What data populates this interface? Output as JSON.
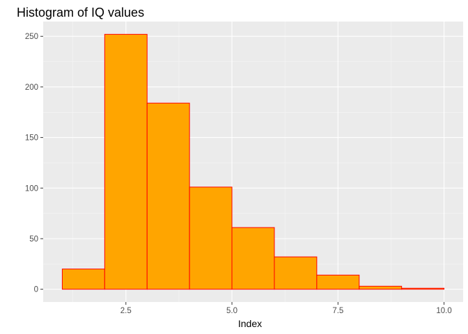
{
  "chart_data": {
    "type": "bar",
    "title": "Histogram of IQ values",
    "xlabel": "Index",
    "ylabel": "",
    "bins": [
      {
        "x0": 1,
        "x1": 2,
        "count": 20
      },
      {
        "x0": 2,
        "x1": 3,
        "count": 252
      },
      {
        "x0": 3,
        "x1": 4,
        "count": 184
      },
      {
        "x0": 4,
        "x1": 5,
        "count": 101
      },
      {
        "x0": 5,
        "x1": 6,
        "count": 61
      },
      {
        "x0": 6,
        "x1": 7,
        "count": 32
      },
      {
        "x0": 7,
        "x1": 8,
        "count": 14
      },
      {
        "x0": 8,
        "x1": 9,
        "count": 3
      },
      {
        "x0": 9,
        "x1": 10,
        "count": 1
      }
    ],
    "xlim": [
      0.55,
      10.45
    ],
    "ylim": [
      -12.6,
      264.6
    ],
    "x_ticks": [
      {
        "value": 2.5,
        "label": "2.5"
      },
      {
        "value": 5.0,
        "label": "5.0"
      },
      {
        "value": 7.5,
        "label": "7.5"
      },
      {
        "value": 10.0,
        "label": "10.0"
      }
    ],
    "y_ticks": [
      {
        "value": 0,
        "label": "0"
      },
      {
        "value": 50,
        "label": "50"
      },
      {
        "value": 100,
        "label": "100"
      },
      {
        "value": 150,
        "label": "150"
      },
      {
        "value": 200,
        "label": "200"
      },
      {
        "value": 250,
        "label": "250"
      }
    ],
    "grid": true,
    "colors": {
      "fill": "#FFA500",
      "outline": "#FF0000",
      "panel_background": "#EBEBEB",
      "grid_major": "#FFFFFF",
      "grid_minor": "#F5F5F5"
    }
  }
}
